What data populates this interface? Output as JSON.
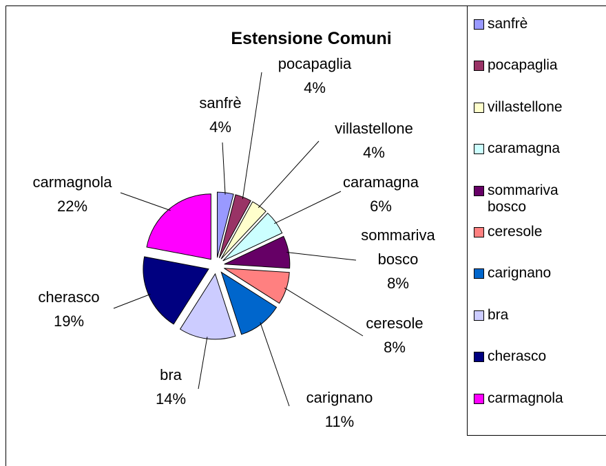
{
  "chart_data": {
    "type": "pie",
    "title": "Estensione Comuni",
    "categories": [
      "sanfrè",
      "pocapaglia",
      "villastellone",
      "caramagna",
      "sommariva bosco",
      "ceresole",
      "carignano",
      "bra",
      "cherasco",
      "carmagnola"
    ],
    "values": [
      4,
      4,
      4,
      6,
      8,
      8,
      11,
      14,
      19,
      22
    ],
    "value_labels": [
      "4%",
      "4%",
      "4%",
      "6%",
      "8%",
      "8%",
      "11%",
      "14%",
      "19%",
      "22%"
    ],
    "colors": [
      "#9999ff",
      "#993366",
      "#ffffcc",
      "#ccffff",
      "#660066",
      "#ff8080",
      "#0066cc",
      "#ccccff",
      "#000080",
      "#ff00ff"
    ],
    "legend": "right"
  }
}
